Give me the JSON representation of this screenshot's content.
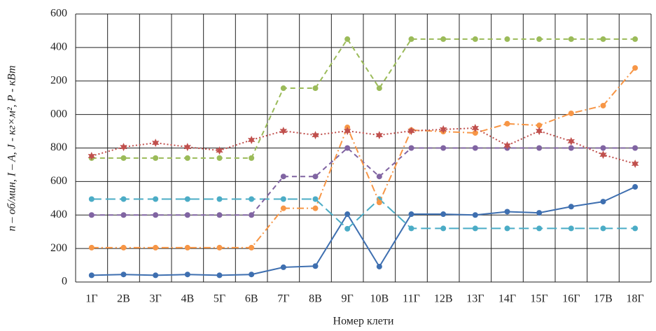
{
  "chart_data": {
    "type": "line",
    "x_label": "Номер клети",
    "y_label": "n – об/мин, I – A, J - кг×м², P - кВт",
    "categories": [
      "1Г",
      "2В",
      "3Г",
      "4В",
      "5Г",
      "6В",
      "7Г",
      "8В",
      "9Г",
      "10В",
      "11Г",
      "12В",
      "13Г",
      "14Г",
      "15Г",
      "16Г",
      "17В",
      "18Г"
    ],
    "ylim": [
      0,
      1600
    ],
    "yticks": [
      0,
      200,
      400,
      600,
      800,
      {
        "value": 1000,
        "label": "000"
      },
      {
        "value": 1200,
        "label": "200"
      },
      {
        "value": 1400,
        "label": "400"
      },
      {
        "value": 1600,
        "label": "600"
      }
    ],
    "grid": true,
    "series": [
      {
        "color": "#3e6fb0",
        "dash": "solid",
        "marker": "circle",
        "values": [
          40,
          45,
          40,
          45,
          40,
          45,
          88,
          95,
          405,
          92,
          405,
          405,
          400,
          420,
          413,
          450,
          480,
          568
        ]
      },
      {
        "color": "#4bacc6",
        "dash": "long",
        "marker": "circle",
        "values": [
          495,
          495,
          495,
          495,
          495,
          495,
          495,
          495,
          318,
          495,
          320,
          320,
          320,
          320,
          320,
          320,
          320,
          320
        ]
      },
      {
        "color": "#8064a2",
        "dash": "dash",
        "marker": "circle",
        "values": [
          400,
          400,
          400,
          400,
          400,
          400,
          630,
          630,
          800,
          630,
          800,
          800,
          800,
          800,
          800,
          800,
          800,
          800
        ]
      },
      {
        "color": "#f79646",
        "dash": "dashdot",
        "marker": "circle",
        "values": [
          205,
          205,
          205,
          205,
          205,
          205,
          440,
          440,
          923,
          475,
          907,
          898,
          890,
          945,
          935,
          1007,
          1053,
          1278
        ]
      },
      {
        "color": "#9bbb59",
        "dash": "dash",
        "marker": "circle",
        "values": [
          740,
          740,
          740,
          740,
          740,
          740,
          1157,
          1157,
          1450,
          1157,
          1450,
          1450,
          1450,
          1450,
          1450,
          1450,
          1450,
          1450
        ]
      },
      {
        "color": "#c0504d",
        "dash": "dot",
        "marker": "star",
        "values": [
          752,
          806,
          831,
          806,
          785,
          848,
          902,
          877,
          902,
          877,
          902,
          911,
          919,
          815,
          902,
          840,
          760,
          706
        ]
      }
    ]
  }
}
